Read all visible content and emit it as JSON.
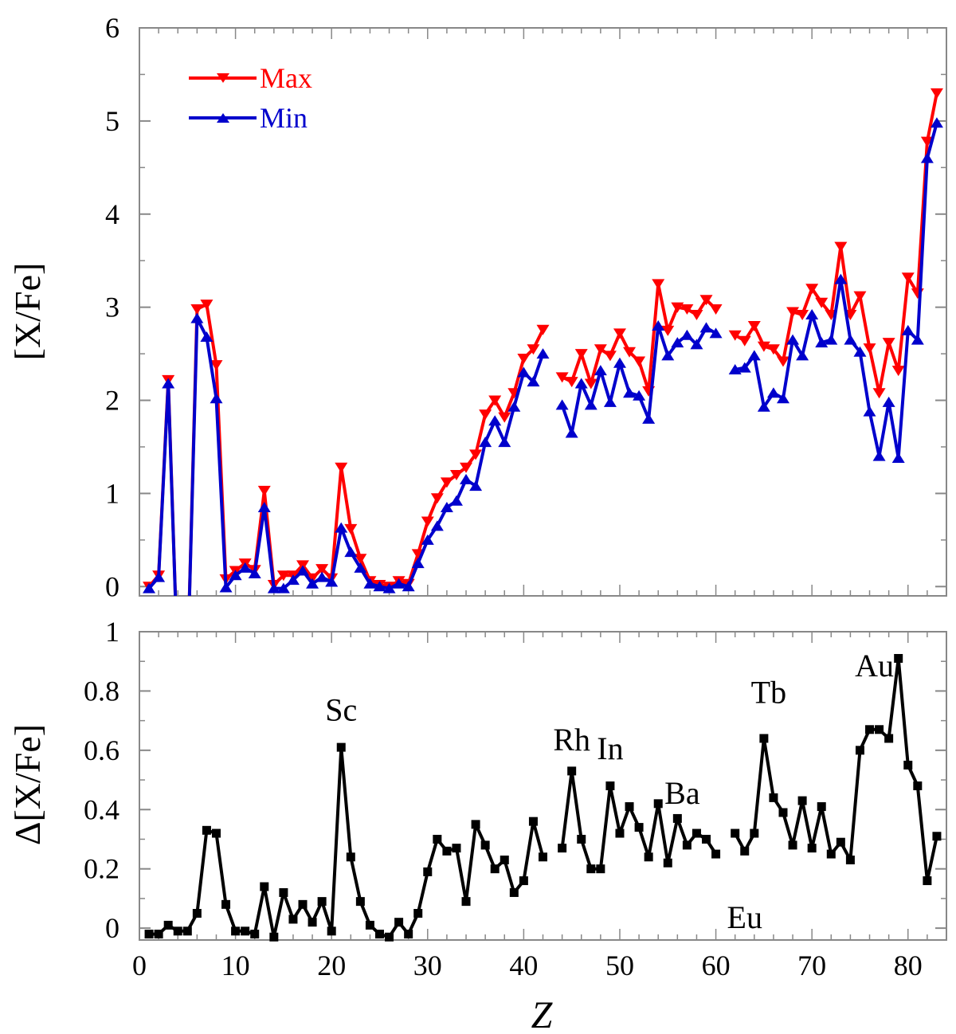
{
  "chart_data": [
    {
      "type": "line",
      "ylabel": "[X/Fe]",
      "xlim": [
        0,
        84
      ],
      "ylim": [
        -0.1,
        6
      ],
      "yticks": [
        0,
        1,
        2,
        3,
        4,
        5,
        6
      ],
      "ytick_labels": [
        "0",
        "1",
        "2",
        "3",
        "4",
        "5",
        "6"
      ],
      "legend_position": "top-left",
      "grid": false,
      "series": [
        {
          "name": "Max",
          "color": "#ff0000",
          "marker": "triangle-down",
          "points": [
            [
              1,
              0.0
            ],
            [
              2,
              0.12
            ],
            [
              3,
              2.22
            ],
            [
              4,
              -0.9
            ],
            [
              5,
              -0.9
            ],
            [
              6,
              2.98
            ],
            [
              7,
              3.03
            ],
            [
              8,
              2.38
            ],
            [
              9,
              0.08
            ],
            [
              10,
              0.17
            ],
            [
              11,
              0.25
            ],
            [
              12,
              0.18
            ],
            [
              13,
              1.03
            ],
            [
              14,
              0.02
            ],
            [
              15,
              0.12
            ],
            [
              16,
              0.12
            ],
            [
              17,
              0.23
            ],
            [
              18,
              0.09
            ],
            [
              19,
              0.19
            ],
            [
              20,
              0.09
            ],
            [
              21,
              1.28
            ],
            [
              22,
              0.62
            ],
            [
              23,
              0.3
            ],
            [
              24,
              0.06
            ],
            [
              25,
              0.02
            ],
            [
              26,
              0.0
            ],
            [
              27,
              0.06
            ],
            [
              28,
              0.03
            ],
            [
              29,
              0.35
            ],
            [
              30,
              0.7
            ],
            [
              31,
              0.95
            ],
            [
              32,
              1.12
            ],
            [
              33,
              1.2
            ],
            [
              34,
              1.28
            ],
            [
              35,
              1.42
            ],
            [
              36,
              1.85
            ],
            [
              37,
              2.0
            ],
            [
              38,
              1.82
            ],
            [
              39,
              2.08
            ],
            [
              40,
              2.45
            ],
            [
              41,
              2.55
            ],
            [
              42,
              2.76
            ],
            [
              44,
              2.25
            ],
            [
              45,
              2.2
            ],
            [
              46,
              2.5
            ],
            [
              47,
              2.18
            ],
            [
              48,
              2.55
            ],
            [
              49,
              2.48
            ],
            [
              50,
              2.72
            ],
            [
              51,
              2.52
            ],
            [
              52,
              2.42
            ],
            [
              53,
              2.1
            ],
            [
              54,
              3.25
            ],
            [
              55,
              2.75
            ],
            [
              56,
              3.0
            ],
            [
              57,
              2.98
            ],
            [
              58,
              2.92
            ],
            [
              59,
              3.08
            ],
            [
              60,
              2.98
            ],
            [
              62,
              2.7
            ],
            [
              63,
              2.64
            ],
            [
              64,
              2.8
            ],
            [
              65,
              2.58
            ],
            [
              66,
              2.55
            ],
            [
              67,
              2.42
            ],
            [
              68,
              2.95
            ],
            [
              69,
              2.92
            ],
            [
              70,
              3.2
            ],
            [
              71,
              3.05
            ],
            [
              72,
              2.92
            ],
            [
              73,
              3.65
            ],
            [
              74,
              2.92
            ],
            [
              75,
              3.12
            ],
            [
              76,
              2.56
            ],
            [
              77,
              2.08
            ],
            [
              78,
              2.62
            ],
            [
              79,
              2.32
            ],
            [
              80,
              3.32
            ],
            [
              81,
              3.15
            ],
            [
              82,
              4.78
            ],
            [
              83,
              5.3
            ]
          ]
        },
        {
          "name": "Min",
          "color": "#0000cc",
          "marker": "triangle-up",
          "points": [
            [
              1,
              -0.02
            ],
            [
              2,
              0.1
            ],
            [
              3,
              2.18
            ],
            [
              4,
              -0.9
            ],
            [
              5,
              -0.9
            ],
            [
              6,
              2.88
            ],
            [
              7,
              2.68
            ],
            [
              8,
              2.02
            ],
            [
              9,
              -0.01
            ],
            [
              10,
              0.12
            ],
            [
              11,
              0.2
            ],
            [
              12,
              0.14
            ],
            [
              13,
              0.85
            ],
            [
              14,
              -0.02
            ],
            [
              15,
              -0.02
            ],
            [
              16,
              0.07
            ],
            [
              17,
              0.17
            ],
            [
              18,
              0.03
            ],
            [
              19,
              0.1
            ],
            [
              20,
              0.05
            ],
            [
              21,
              0.63
            ],
            [
              22,
              0.37
            ],
            [
              23,
              0.2
            ],
            [
              24,
              0.03
            ],
            [
              25,
              0.0
            ],
            [
              26,
              -0.02
            ],
            [
              27,
              0.03
            ],
            [
              28,
              0.0
            ],
            [
              29,
              0.25
            ],
            [
              30,
              0.5
            ],
            [
              31,
              0.65
            ],
            [
              32,
              0.85
            ],
            [
              33,
              0.92
            ],
            [
              34,
              1.15
            ],
            [
              35,
              1.08
            ],
            [
              36,
              1.55
            ],
            [
              37,
              1.78
            ],
            [
              38,
              1.55
            ],
            [
              39,
              1.93
            ],
            [
              40,
              2.3
            ],
            [
              41,
              2.2
            ],
            [
              42,
              2.5
            ],
            [
              44,
              1.95
            ],
            [
              45,
              1.65
            ],
            [
              46,
              2.18
            ],
            [
              47,
              1.95
            ],
            [
              48,
              2.32
            ],
            [
              49,
              1.98
            ],
            [
              50,
              2.4
            ],
            [
              51,
              2.08
            ],
            [
              52,
              2.05
            ],
            [
              53,
              1.8
            ],
            [
              54,
              2.8
            ],
            [
              55,
              2.48
            ],
            [
              56,
              2.62
            ],
            [
              57,
              2.7
            ],
            [
              58,
              2.6
            ],
            [
              59,
              2.78
            ],
            [
              60,
              2.72
            ],
            [
              62,
              2.33
            ],
            [
              63,
              2.35
            ],
            [
              64,
              2.48
            ],
            [
              65,
              1.93
            ],
            [
              66,
              2.08
            ],
            [
              67,
              2.02
            ],
            [
              68,
              2.65
            ],
            [
              69,
              2.48
            ],
            [
              70,
              2.92
            ],
            [
              71,
              2.62
            ],
            [
              72,
              2.65
            ],
            [
              73,
              3.3
            ],
            [
              74,
              2.65
            ],
            [
              75,
              2.52
            ],
            [
              76,
              1.88
            ],
            [
              77,
              1.4
            ],
            [
              78,
              1.98
            ],
            [
              79,
              1.38
            ],
            [
              80,
              2.75
            ],
            [
              81,
              2.65
            ],
            [
              82,
              4.6
            ],
            [
              83,
              4.98
            ]
          ]
        }
      ]
    },
    {
      "type": "line",
      "xlabel": "Z",
      "ylabel": "Δ[X/Fe]",
      "xlim": [
        0,
        84
      ],
      "ylim": [
        -0.04,
        1
      ],
      "xticks": [
        0,
        10,
        20,
        30,
        40,
        50,
        60,
        70,
        80
      ],
      "xtick_labels": [
        "0",
        "10",
        "20",
        "30",
        "40",
        "50",
        "60",
        "70",
        "80"
      ],
      "yticks": [
        0,
        0.2,
        0.4,
        0.6,
        0.8,
        1
      ],
      "ytick_labels": [
        "0",
        "0.2",
        "0.4",
        "0.6",
        "0.8",
        "1"
      ],
      "grid": false,
      "series": [
        {
          "color": "#000000",
          "marker": "square",
          "points": [
            [
              1,
              -0.02
            ],
            [
              2,
              -0.02
            ],
            [
              3,
              0.01
            ],
            [
              4,
              -0.01
            ],
            [
              5,
              -0.01
            ],
            [
              6,
              0.05
            ],
            [
              7,
              0.33
            ],
            [
              8,
              0.32
            ],
            [
              9,
              0.08
            ],
            [
              10,
              -0.01
            ],
            [
              11,
              -0.01
            ],
            [
              12,
              -0.02
            ],
            [
              13,
              0.14
            ],
            [
              14,
              -0.03
            ],
            [
              15,
              0.12
            ],
            [
              16,
              0.03
            ],
            [
              17,
              0.08
            ],
            [
              18,
              0.02
            ],
            [
              19,
              0.09
            ],
            [
              20,
              -0.01
            ],
            [
              21,
              0.61
            ],
            [
              22,
              0.24
            ],
            [
              23,
              0.09
            ],
            [
              24,
              0.01
            ],
            [
              25,
              -0.02
            ],
            [
              26,
              -0.03
            ],
            [
              27,
              0.02
            ],
            [
              28,
              -0.02
            ],
            [
              29,
              0.05
            ],
            [
              30,
              0.19
            ],
            [
              31,
              0.3
            ],
            [
              32,
              0.26
            ],
            [
              33,
              0.27
            ],
            [
              34,
              0.09
            ],
            [
              35,
              0.35
            ],
            [
              36,
              0.28
            ],
            [
              37,
              0.2
            ],
            [
              38,
              0.23
            ],
            [
              39,
              0.12
            ],
            [
              40,
              0.16
            ],
            [
              41,
              0.36
            ],
            [
              42,
              0.24
            ],
            [
              44,
              0.27
            ],
            [
              45,
              0.53
            ],
            [
              46,
              0.3
            ],
            [
              47,
              0.2
            ],
            [
              48,
              0.2
            ],
            [
              49,
              0.48
            ],
            [
              50,
              0.32
            ],
            [
              51,
              0.41
            ],
            [
              52,
              0.34
            ],
            [
              53,
              0.24
            ],
            [
              54,
              0.42
            ],
            [
              55,
              0.22
            ],
            [
              56,
              0.37
            ],
            [
              57,
              0.28
            ],
            [
              58,
              0.32
            ],
            [
              59,
              0.3
            ],
            [
              60,
              0.25
            ],
            [
              62,
              0.32
            ],
            [
              63,
              0.26
            ],
            [
              64,
              0.32
            ],
            [
              65,
              0.64
            ],
            [
              66,
              0.44
            ],
            [
              67,
              0.39
            ],
            [
              68,
              0.28
            ],
            [
              69,
              0.43
            ],
            [
              70,
              0.27
            ],
            [
              71,
              0.41
            ],
            [
              72,
              0.25
            ],
            [
              73,
              0.29
            ],
            [
              74,
              0.23
            ],
            [
              75,
              0.6
            ],
            [
              76,
              0.67
            ],
            [
              77,
              0.67
            ],
            [
              78,
              0.64
            ],
            [
              79,
              0.91
            ],
            [
              80,
              0.55
            ],
            [
              81,
              0.48
            ],
            [
              82,
              0.16
            ],
            [
              83,
              0.31
            ]
          ]
        }
      ],
      "annotations": [
        {
          "text": "Sc",
          "x": 21,
          "y": 0.7
        },
        {
          "text": "Rh",
          "x": 45,
          "y": 0.6
        },
        {
          "text": "In",
          "x": 49,
          "y": 0.57
        },
        {
          "text": "Ba",
          "x": 56.5,
          "y": 0.42
        },
        {
          "text": "Eu",
          "x": 63,
          "y": 0.0
        },
        {
          "text": "Tb",
          "x": 65.5,
          "y": 0.76
        },
        {
          "text": "Au",
          "x": 76.5,
          "y": 0.85
        }
      ]
    }
  ]
}
